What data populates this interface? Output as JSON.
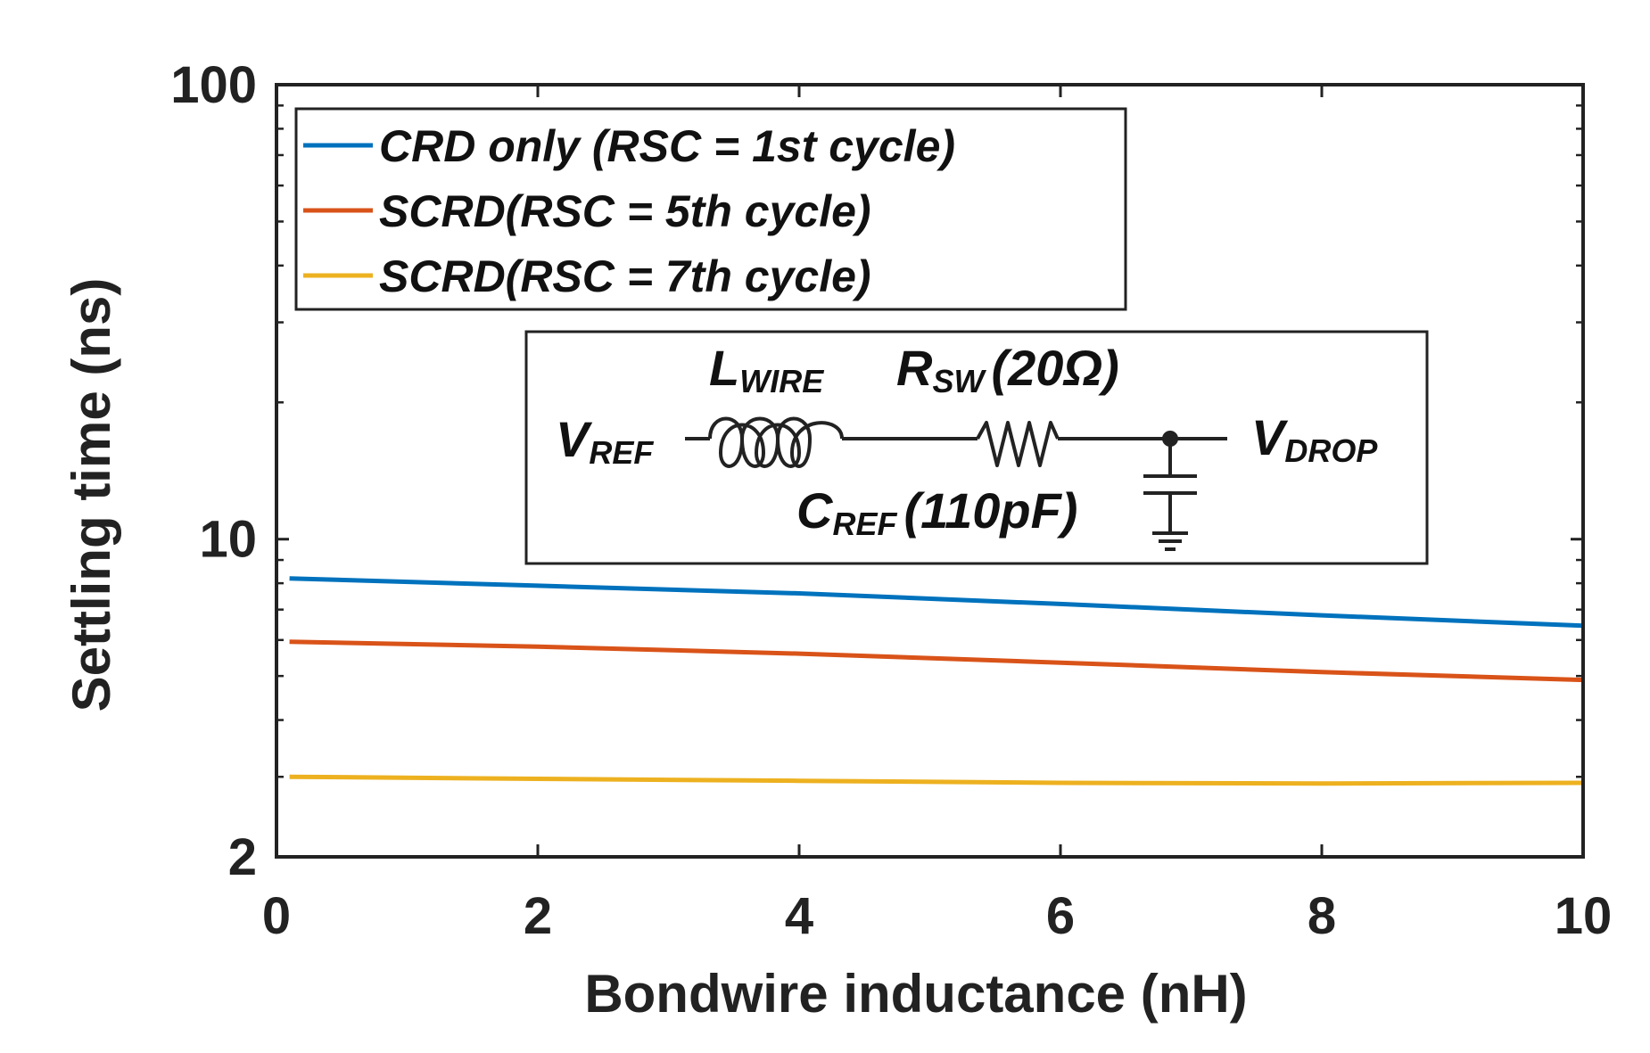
{
  "chart_data": {
    "type": "line",
    "title": "",
    "xlabel": "Bondwire inductance (nH)",
    "ylabel": "Settling time (ns)",
    "xlim": [
      0,
      10
    ],
    "ylim": [
      2,
      100
    ],
    "yscale": "log",
    "grid": false,
    "legend_position": "top-left",
    "x_ticks": [
      0,
      2,
      4,
      6,
      8,
      10
    ],
    "x_tick_labels": [
      "0",
      "2",
      "4",
      "6",
      "8",
      "10"
    ],
    "y_ticks": [
      2,
      10,
      100
    ],
    "y_tick_labels": [
      "2",
      "10",
      "100"
    ],
    "series": [
      {
        "name": "CRD only (RSC = 1st cycle)",
        "color": "#0072BD",
        "x": [
          0.1,
          2,
          4,
          6,
          8,
          10
        ],
        "y": [
          8.2,
          7.9,
          7.6,
          7.2,
          6.8,
          6.45
        ]
      },
      {
        "name": "SCRD(RSC = 5th cycle)",
        "color": "#D95319",
        "x": [
          0.1,
          2,
          4,
          6,
          8,
          10
        ],
        "y": [
          5.95,
          5.8,
          5.6,
          5.35,
          5.1,
          4.9
        ]
      },
      {
        "name": "SCRD(RSC = 7th cycle)",
        "color": "#EDB120",
        "x": [
          0.1,
          2,
          4,
          6,
          8,
          10
        ],
        "y": [
          3.0,
          2.97,
          2.94,
          2.91,
          2.9,
          2.91
        ]
      }
    ],
    "annotations": {
      "circuit": {
        "v_ref": {
          "main": "V",
          "sub": "REF"
        },
        "v_drop": {
          "main": "V",
          "sub": "DROP"
        },
        "l_wire": {
          "main": "L",
          "sub": "WIRE"
        },
        "r_sw": {
          "main": "R",
          "sub": "SW",
          "value": "(20Ω)"
        },
        "c_ref": {
          "main": "C",
          "sub": "REF",
          "value": "(110pF)"
        }
      }
    }
  }
}
